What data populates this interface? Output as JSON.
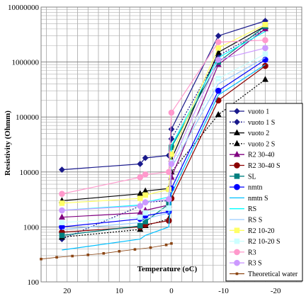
{
  "chart_data": {
    "type": "line",
    "title": "",
    "xlabel": "Temperature (oC)",
    "ylabel": "Resistivity (Ohmm)",
    "x_reversed": true,
    "xlim": [
      25,
      -25
    ],
    "ylim": [
      100,
      10000000
    ],
    "y_scale": "log",
    "x_ticks": [
      20,
      10,
      0,
      -10,
      -20
    ],
    "y_ticks": [
      100,
      1000,
      10000,
      100000,
      1000000,
      10000000
    ],
    "y_tick_labels": [
      "100",
      "1000",
      "10000",
      "100000",
      "1000000",
      "10000000"
    ],
    "grid": true,
    "legend_position": "right",
    "series": [
      {
        "name": "vuoto 1",
        "color": "#1a1a8c",
        "dash": "solid",
        "marker": "diamond",
        "x": [
          21,
          6,
          5,
          0.5,
          0,
          -9,
          -18
        ],
        "y": [
          11000,
          14000,
          18000,
          20000,
          60000,
          3000000,
          5600000
        ]
      },
      {
        "name": "vuoto 1 S",
        "color": "#1a1a8c",
        "dash": "dotted",
        "marker": "diamond",
        "x": [
          21,
          6,
          5,
          0.5,
          0,
          -9,
          -18
        ],
        "y": [
          600,
          2400,
          2800,
          3000,
          40000,
          1300000,
          4000000
        ]
      },
      {
        "name": "vuoto 2",
        "color": "#000000",
        "dash": "solid",
        "marker": "triangle",
        "x": [
          21,
          6,
          5,
          0.5,
          0,
          -9,
          -18
        ],
        "y": [
          3000,
          4000,
          4500,
          5000,
          17000,
          1500000,
          4500000
        ]
      },
      {
        "name": "vuoto 2 S",
        "color": "#000000",
        "dash": "dotted",
        "marker": "triangle",
        "x": [
          21,
          6,
          5,
          0.5,
          0,
          -9,
          -18
        ],
        "y": [
          650,
          900,
          1050,
          1400,
          10000,
          110000,
          480000
        ]
      },
      {
        "name": "R2 30-40",
        "color": "#800080",
        "dash": "solid",
        "marker": "triangle",
        "x": [
          21,
          6,
          5,
          0.5,
          0,
          -9,
          -18
        ],
        "y": [
          1500,
          1800,
          2000,
          2500,
          8000,
          900000,
          4000000
        ]
      },
      {
        "name": "R2 30-40 S",
        "color": "#8b0000",
        "dash": "solid",
        "marker": "circle",
        "x": [
          21,
          6,
          5,
          0.5,
          0,
          -9,
          -18
        ],
        "y": [
          800,
          1000,
          1100,
          1300,
          3300,
          200000,
          850000
        ]
      },
      {
        "name": "SL",
        "color": "#008080",
        "dash": "solid",
        "marker": "square",
        "x": [
          21,
          6,
          5,
          0.5,
          0,
          -9,
          -18
        ],
        "y": [
          700,
          1050,
          1250,
          2600,
          28000,
          1000000,
          4500000
        ]
      },
      {
        "name": "nmtn",
        "color": "#0000ff",
        "dash": "solid",
        "marker": "circle",
        "x": [
          21,
          6,
          5,
          0.5,
          0,
          -9,
          -18
        ],
        "y": [
          1000,
          1400,
          1600,
          1900,
          5000,
          300000,
          1100000
        ]
      },
      {
        "name": "nmtn S",
        "color": "#00bfff",
        "dash": "solid",
        "marker": "none",
        "x": [
          21,
          6,
          5,
          0.5,
          0,
          -9,
          -18
        ],
        "y": [
          380,
          600,
          700,
          1000,
          4000,
          250000,
          900000
        ]
      },
      {
        "name": "RS",
        "color": "#00ffff",
        "dash": "solid",
        "marker": "none",
        "x": [
          21,
          6,
          5,
          0.5,
          0,
          -9,
          -18
        ],
        "y": [
          2000,
          2500,
          2800,
          3500,
          30000,
          1200000,
          3600000
        ]
      },
      {
        "name": "RS S",
        "color": "#99ccff",
        "dash": "solid",
        "marker": "none",
        "x": [
          21,
          6,
          5,
          0.5,
          0,
          -9,
          -18
        ],
        "y": [
          900,
          1200,
          1400,
          1800,
          12000,
          400000,
          1200000
        ]
      },
      {
        "name": "R2 10-20",
        "color": "#ffff66",
        "dash": "solid",
        "marker": "square",
        "x": [
          21,
          6,
          5,
          0.5,
          0,
          -9,
          -18
        ],
        "y": [
          2700,
          3300,
          3800,
          4800,
          21000,
          1800000,
          4800000
        ]
      },
      {
        "name": "R2 10-20 S",
        "color": "#ccffff",
        "dash": "solid",
        "marker": "square",
        "x": [
          21,
          6,
          5,
          0.5,
          0,
          -9,
          -18
        ],
        "y": [
          1200,
          1500,
          1800,
          2200,
          15000,
          500000,
          1400000
        ]
      },
      {
        "name": "R3",
        "color": "#ff99cc",
        "dash": "solid",
        "marker": "circle",
        "x": [
          21,
          6,
          5,
          0.5,
          0,
          -9,
          -18
        ],
        "y": [
          4000,
          8000,
          9000,
          10000,
          120000,
          2300000,
          2500000
        ]
      },
      {
        "name": "R3 S",
        "color": "#cc99ff",
        "dash": "solid",
        "marker": "circle",
        "x": [
          21,
          6,
          5,
          0.5,
          0,
          -9,
          -18
        ],
        "y": [
          2000,
          2400,
          2800,
          3200,
          14000,
          1100000,
          1800000
        ]
      },
      {
        "name": "Theoretical water",
        "color": "#8b4513",
        "dash": "solid",
        "marker": "smallsquare",
        "x": [
          25,
          22,
          19,
          16,
          13,
          10,
          7,
          4,
          1,
          0
        ],
        "y": [
          260,
          280,
          295,
          310,
          330,
          360,
          390,
          420,
          470,
          500
        ]
      }
    ]
  }
}
